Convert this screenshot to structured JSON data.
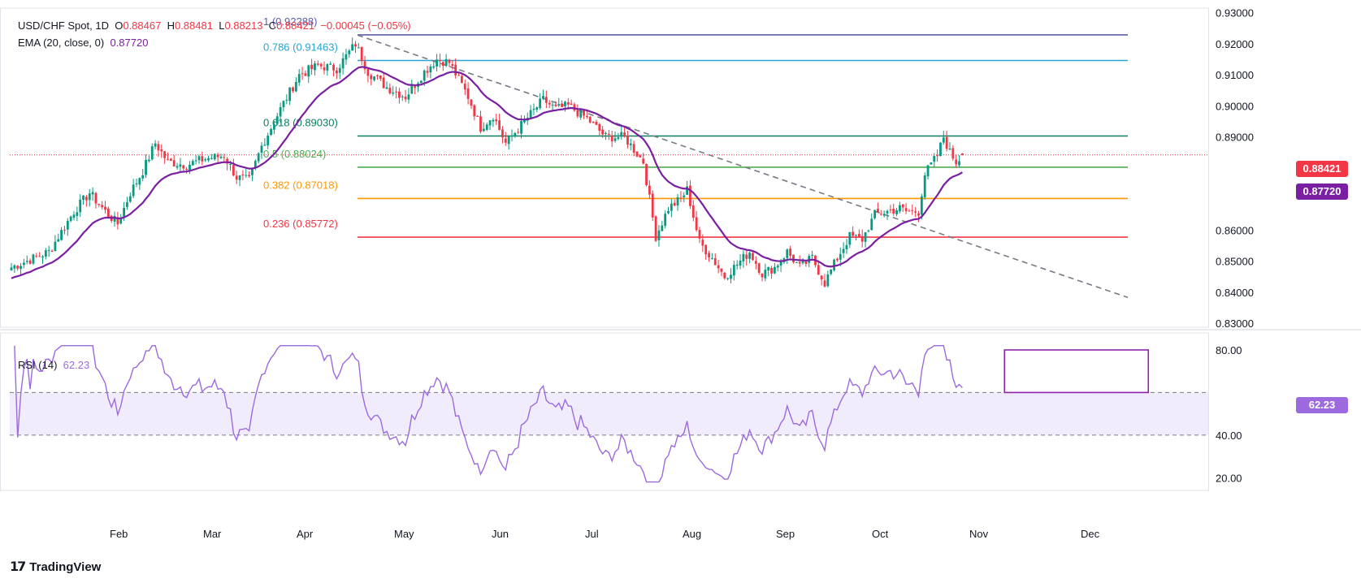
{
  "header": {
    "symbol": "USD/CHF Spot, 1D",
    "o_label": "O",
    "open": "0.88467",
    "h_label": "H",
    "high": "0.88481",
    "l_label": "L",
    "low": "0.88213",
    "c_label": "C",
    "close": "0.88421",
    "change": "−0.00045 (−0.05%)"
  },
  "ema_legend": {
    "label": "EMA (20, close, 0)",
    "value": "0.87720"
  },
  "rsi_legend": {
    "label": "RSI (14)",
    "value": "62.23"
  },
  "brand": {
    "name": "TradingView"
  },
  "colors": {
    "up": "#089981",
    "down": "#f23645",
    "ema": "#7b1fa2",
    "rsi": "#9c6ade",
    "fib_1": "#5b5ea6",
    "fib_786": "#26a5d0",
    "fib_618": "#0a7f5f",
    "fib_5": "#4caf50",
    "fib_382": "#ff9800",
    "fib_236": "#f23645",
    "trend": "#787b86"
  },
  "chart_data": [
    {
      "type": "candlestick",
      "title": "USD/CHF Spot, 1D",
      "x_ticks": [
        "Feb",
        "Mar",
        "Apr",
        "May",
        "Jun",
        "Jul",
        "Aug",
        "Sep",
        "Oct",
        "Nov",
        "Dec"
      ],
      "y_ticks": [
        "0.93000",
        "0.92000",
        "0.91000",
        "0.90000",
        "0.89000",
        "0.86000",
        "0.85000",
        "0.84000",
        "0.83000"
      ],
      "ylim": [
        0.8287,
        0.9315
      ],
      "last_price": "0.88421",
      "ema_value": "0.87720",
      "fibonacci": [
        {
          "level": "1",
          "price": 0.92288,
          "label": "1 (0.92288)"
        },
        {
          "level": "0.786",
          "price": 0.91463,
          "label": "0.786 (0.91463)"
        },
        {
          "level": "0.618",
          "price": 0.8903,
          "label": "0.618 (0.89030)"
        },
        {
          "level": "0.5",
          "price": 0.88024,
          "label": "0.5 (0.88024)"
        },
        {
          "level": "0.382",
          "price": 0.87018,
          "label": "0.382 (0.87018)"
        },
        {
          "level": "0.236",
          "price": 0.85772,
          "label": "0.236 (0.85772)"
        }
      ],
      "trendline": [
        [
          0.9228,
          "Apr 12"
        ],
        [
          0.8383,
          "Nov 22"
        ]
      ],
      "close_path": [
        [
          0,
          0.848
        ],
        [
          12,
          0.853
        ],
        [
          20,
          0.866
        ],
        [
          25,
          0.872
        ],
        [
          30,
          0.866
        ],
        [
          34,
          0.862
        ],
        [
          38,
          0.872
        ],
        [
          42,
          0.879
        ],
        [
          46,
          0.888
        ],
        [
          50,
          0.882
        ],
        [
          56,
          0.881
        ],
        [
          62,
          0.883
        ],
        [
          68,
          0.884
        ],
        [
          72,
          0.877
        ],
        [
          76,
          0.876
        ],
        [
          80,
          0.887
        ],
        [
          86,
          0.899
        ],
        [
          92,
          0.91
        ],
        [
          98,
          0.913
        ],
        [
          104,
          0.912
        ],
        [
          110,
          0.92
        ],
        [
          114,
          0.911
        ],
        [
          120,
          0.906
        ],
        [
          126,
          0.903
        ],
        [
          132,
          0.911
        ],
        [
          136,
          0.915
        ],
        [
          140,
          0.914
        ],
        [
          146,
          0.903
        ],
        [
          150,
          0.893
        ],
        [
          154,
          0.897
        ],
        [
          158,
          0.888
        ],
        [
          164,
          0.895
        ],
        [
          170,
          0.902
        ],
        [
          174,
          0.899
        ],
        [
          178,
          0.9
        ],
        [
          184,
          0.896
        ],
        [
          190,
          0.89
        ],
        [
          196,
          0.89
        ],
        [
          202,
          0.882
        ],
        [
          206,
          0.858
        ],
        [
          210,
          0.867
        ],
        [
          214,
          0.87
        ],
        [
          216,
          0.873
        ],
        [
          220,
          0.856
        ],
        [
          224,
          0.851
        ],
        [
          228,
          0.845
        ],
        [
          232,
          0.849
        ],
        [
          236,
          0.853
        ],
        [
          240,
          0.846
        ],
        [
          244,
          0.848
        ],
        [
          248,
          0.853
        ],
        [
          252,
          0.848
        ],
        [
          256,
          0.851
        ],
        [
          260,
          0.843
        ],
        [
          264,
          0.851
        ],
        [
          268,
          0.858
        ],
        [
          272,
          0.857
        ],
        [
          276,
          0.865
        ],
        [
          280,
          0.866
        ],
        [
          284,
          0.867
        ],
        [
          286,
          0.866
        ],
        [
          290,
          0.866
        ],
        [
          292,
          0.878
        ],
        [
          296,
          0.884
        ],
        [
          298,
          0.89
        ],
        [
          300,
          0.885
        ],
        [
          302,
          0.882
        ],
        [
          304,
          0.884
        ]
      ]
    },
    {
      "type": "line",
      "title": "RSI (14)",
      "y_ticks": [
        "80.00",
        "40.00",
        "20.00"
      ],
      "ylim": [
        14,
        88
      ],
      "band": [
        40,
        60
      ],
      "last_value": "62.23",
      "highlight_box": [
        [
          0.83,
          0.95
        ],
        [
          60,
          80
        ]
      ]
    }
  ]
}
